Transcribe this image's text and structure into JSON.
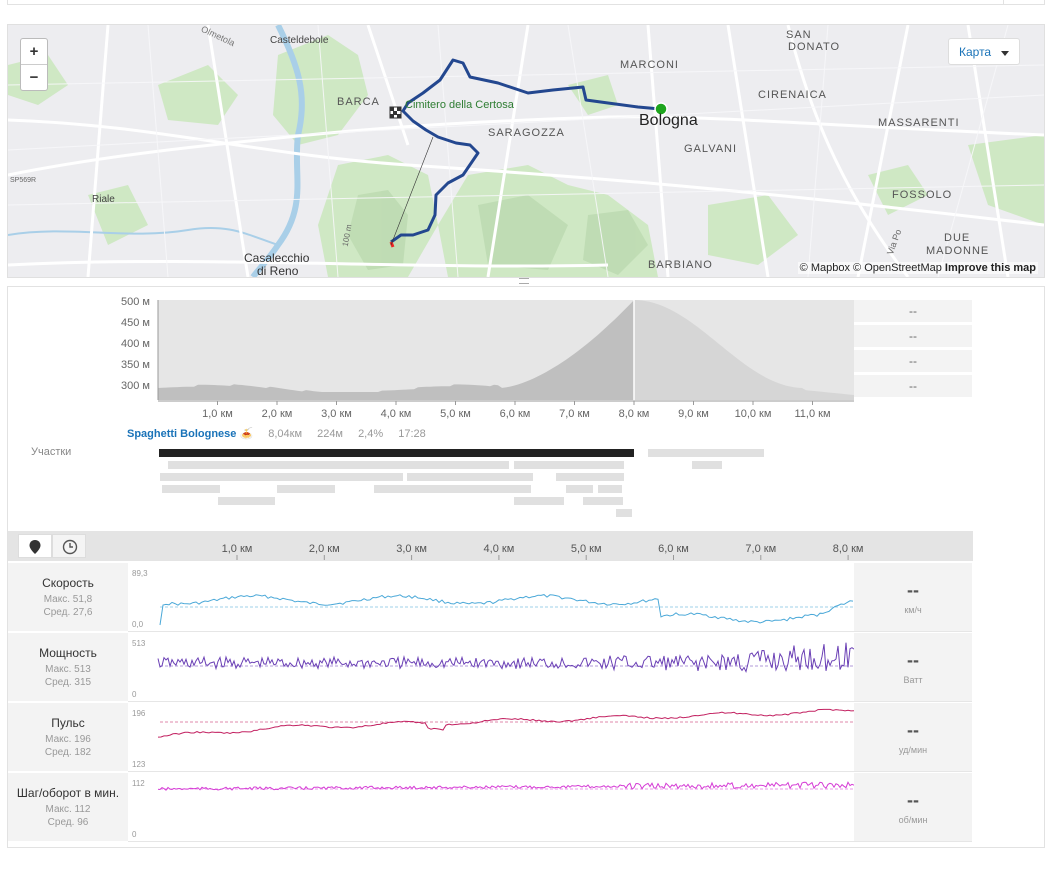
{
  "map": {
    "zoom_in": "+",
    "zoom_out": "−",
    "map_type": "Карта",
    "attribution": {
      "mapbox": "© Mapbox",
      "osm": "© OpenStreetMap",
      "improve": "Improve this map"
    },
    "labels": {
      "casteldebole": "Casteldebole",
      "san_donato_1": "SAN",
      "san_donato_2": "DONATO",
      "marconi": "MARCONI",
      "barca": "BARCA",
      "certosa": "Cimitero della Certosa",
      "bologna": "Bologna",
      "cirenaica": "CIRENAICA",
      "massarenti": "MASSARENTI",
      "saragozza": "SARAGOZZA",
      "galvani": "GALVANI",
      "riale": "Riale",
      "fossolo": "FOSSOLO",
      "due_madonne_1": "DUE",
      "due_madonne_2": "MADONNE",
      "casalecchio_1": "Casalecchio",
      "casalecchio_2": "di Reno",
      "barbiano": "BARBIANO",
      "olmetola": "Olmetola",
      "sp569r": "SP569R",
      "via_po": "Via Po",
      "contour_100": "100 m"
    }
  },
  "elevation": {
    "y_ticks": [
      "500 м",
      "450 м",
      "400 м",
      "350 м",
      "300 м"
    ],
    "x_ticks": [
      "1,0 км",
      "2,0 км",
      "3,0 км",
      "4,0 км",
      "5,0 км",
      "6,0 км",
      "7,0 км",
      "8,0 км",
      "9,0 км",
      "10,0 км",
      "11,0 км"
    ],
    "side_values": [
      "--",
      "--",
      "--",
      "--"
    ]
  },
  "segments": {
    "label": "Участки",
    "name": "Spaghetti Bolognese 🍝",
    "distance": "8,04км",
    "elevation": "224м",
    "grade": "2,4%",
    "time": "17:28"
  },
  "charts": {
    "x_ticks": [
      "1,0 км",
      "2,0 км",
      "3,0 км",
      "4,0 км",
      "5,0 км",
      "6,0 км",
      "7,0 км",
      "8,0 км"
    ],
    "map_view_icon": "map-pin-icon",
    "time_view_icon": "clock-icon",
    "rows": [
      {
        "title": "Скорость",
        "max": "Макс. 51,8",
        "avg": "Сред. 27,6",
        "ytop": "89,3",
        "ybot": "0,0",
        "value": "--",
        "unit": "км/ч",
        "color": "#4aa8d8"
      },
      {
        "title": "Мощность",
        "max": "Макс. 513",
        "avg": "Сред. 315",
        "ytop": "513",
        "ybot": "0",
        "value": "--",
        "unit": "Ватт",
        "color": "#6a3fb5"
      },
      {
        "title": "Пульс",
        "max": "Макс. 196",
        "avg": "Сред. 182",
        "ytop": "196",
        "ybot": "123",
        "value": "--",
        "unit": "уд/мин",
        "color": "#c22060"
      },
      {
        "title": "Шаг/оборот в мин.",
        "max": "Макс. 112",
        "avg": "Сред. 96",
        "ytop": "112",
        "ybot": "0",
        "value": "--",
        "unit": "об/мин",
        "color": "#d53bd5"
      }
    ]
  }
}
